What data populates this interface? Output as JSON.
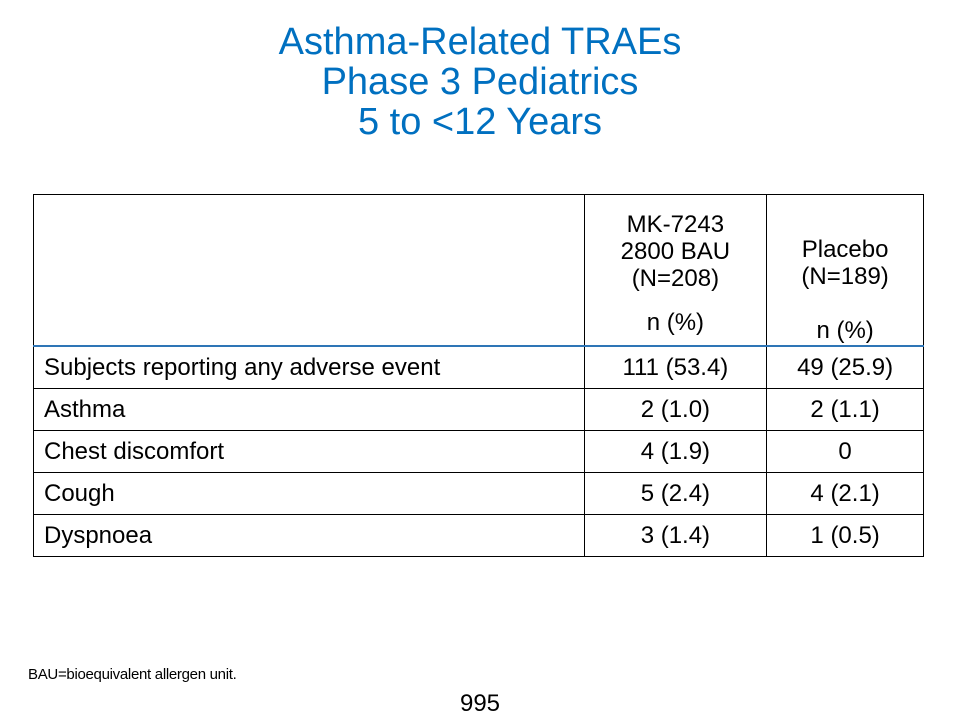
{
  "title": {
    "line1": "Asthma-Related TRAEs",
    "line2": "Phase 3 Pediatrics",
    "line3": "5 to <12 Years"
  },
  "table": {
    "columns": [
      {
        "header_lines": [
          "MK-7243",
          "2800 BAU",
          "(N=208)"
        ],
        "unit": "n (%)"
      },
      {
        "header_lines": [
          "Placebo",
          "(N=189)"
        ],
        "unit": "n (%)"
      }
    ],
    "rows": [
      {
        "label": "Subjects reporting any adverse event",
        "values": [
          "111 (53.4)",
          "49 (25.9)"
        ]
      },
      {
        "label": "Asthma",
        "values": [
          "2 (1.0)",
          "2 (1.1)"
        ]
      },
      {
        "label": "Chest discomfort",
        "values": [
          "4 (1.9)",
          "0"
        ]
      },
      {
        "label": "Cough",
        "values": [
          "5 (2.4)",
          "4 (2.1)"
        ]
      },
      {
        "label": "Dyspnoea",
        "values": [
          "3 (1.4)",
          "1 (0.5)"
        ]
      }
    ]
  },
  "footnote": "BAU=bioequivalent allergen unit.",
  "page_number": "995",
  "colors": {
    "title": "#0070C0",
    "header_rule": "#2E75B6"
  }
}
